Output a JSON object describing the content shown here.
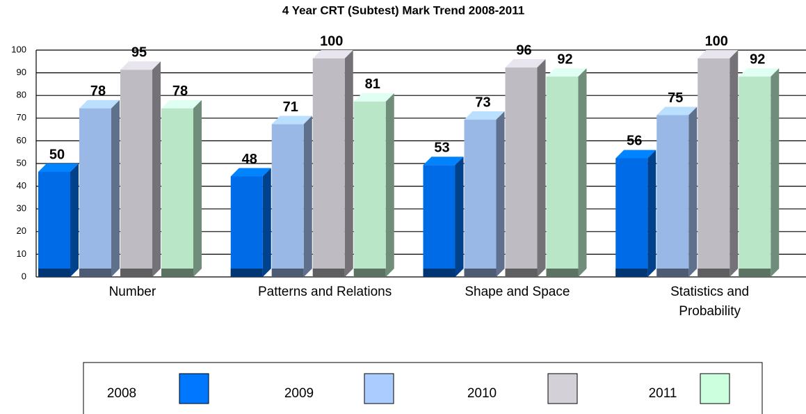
{
  "chart_data": {
    "type": "bar3d",
    "title": "4 Year CRT (Subtest) Mark Trend 2008-2011",
    "categories": [
      "Number",
      "Patterns and Relations",
      "Shape and Space",
      "Statistics and Probability"
    ],
    "series": [
      {
        "name": "2008",
        "color": "#0077ff",
        "values": [
          50,
          48,
          53,
          56
        ]
      },
      {
        "name": "2009",
        "color": "#aaccff",
        "values": [
          78,
          71,
          73,
          75
        ]
      },
      {
        "name": "2010",
        "color": "#d4d0d8",
        "values": [
          95,
          100,
          96,
          100
        ]
      },
      {
        "name": "2011",
        "color": "#ccffdd",
        "values": [
          78,
          81,
          92,
          92
        ]
      }
    ],
    "ylim": [
      0,
      100
    ],
    "yticks": [
      0,
      10,
      20,
      30,
      40,
      50,
      60,
      70,
      80,
      90,
      100
    ],
    "grid": true
  }
}
